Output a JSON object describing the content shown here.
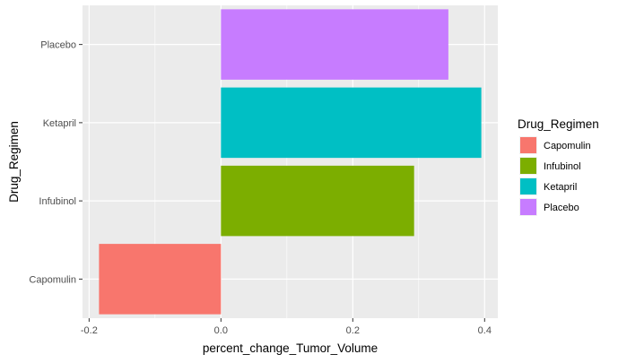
{
  "chart_data": {
    "type": "bar",
    "orientation": "horizontal",
    "title": "",
    "xlabel": "percent_change_Tumor_Volume",
    "ylabel": "Drug_Regimen",
    "categories": [
      "Capomulin",
      "Infubinol",
      "Ketapril",
      "Placebo"
    ],
    "values": [
      -0.185,
      0.293,
      0.395,
      0.345
    ],
    "colors": [
      "#F8766D",
      "#7CAE00",
      "#00BFC4",
      "#C77CFF"
    ],
    "xlim": [
      -0.21,
      0.42
    ],
    "x_ticks": [
      -0.2,
      0.0,
      0.2,
      0.4
    ],
    "x_tick_labels": [
      "-0.2",
      "0.0",
      "0.2",
      "0.4"
    ],
    "grid": true,
    "panel_background": "#EBEBEB",
    "legend": {
      "title": "Drug_Regimen",
      "position": "right",
      "items": [
        "Capomulin",
        "Infubinol",
        "Ketapril",
        "Placebo"
      ]
    }
  }
}
